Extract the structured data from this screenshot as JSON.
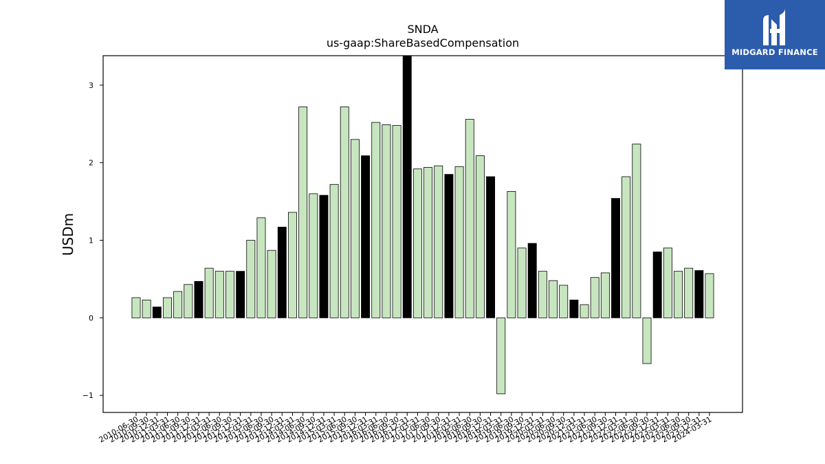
{
  "logo": {
    "text": "MIDGARD FINANCE",
    "icon": "midgard-logo-icon",
    "background": "#2c5cac"
  },
  "chart_data": {
    "type": "bar",
    "title": "SNDA",
    "subtitle": "us-gaap:ShareBasedCompensation",
    "xlabel": "",
    "ylabel": "USDm",
    "ylim": [
      -1.22,
      3.38
    ],
    "yticks": [
      -1,
      0,
      1,
      2,
      3
    ],
    "grid": false,
    "colors": {
      "normal": "#c7e6c0",
      "highlight": "#000000",
      "edge": "#000000"
    },
    "categories": [
      "2010-06-30",
      "2010-09-30",
      "2010-12-31",
      "2011-03-31",
      "2011-06-30",
      "2011-09-30",
      "2011-12-31",
      "2012-03-31",
      "2012-06-30",
      "2012-09-30",
      "2012-12-31",
      "2013-03-31",
      "2013-06-30",
      "2013-09-30",
      "2013-12-31",
      "2014-03-31",
      "2014-06-30",
      "2014-09-30",
      "2014-12-31",
      "2015-03-31",
      "2015-06-30",
      "2015-09-30",
      "2015-12-31",
      "2016-03-31",
      "2016-06-30",
      "2016-09-30",
      "2016-12-31",
      "2017-03-31",
      "2017-06-30",
      "2017-09-30",
      "2017-12-31",
      "2018-03-31",
      "2018-06-30",
      "2018-09-30",
      "2018-12-31",
      "2019-03-31",
      "2019-06-30",
      "2019-09-30",
      "2019-12-31",
      "2020-03-31",
      "2020-06-30",
      "2020-09-30",
      "2020-12-31",
      "2021-03-31",
      "2021-06-30",
      "2021-09-30",
      "2021-12-31",
      "2022-03-31",
      "2022-06-30",
      "2022-09-30",
      "2022-12-31",
      "2023-03-31",
      "2023-06-30",
      "2023-09-30",
      "2023-12-31",
      "2024-03-31"
    ],
    "values": [
      0.26,
      0.23,
      0.14,
      0.26,
      0.34,
      0.43,
      0.47,
      0.64,
      0.6,
      0.6,
      0.6,
      1.0,
      1.29,
      0.87,
      1.17,
      1.36,
      2.72,
      1.6,
      1.58,
      1.72,
      2.72,
      2.3,
      2.09,
      2.52,
      2.49,
      2.48,
      3.42,
      1.92,
      1.94,
      1.96,
      1.85,
      1.95,
      2.56,
      2.09,
      1.82,
      -0.98,
      1.63,
      0.9,
      0.96,
      0.6,
      0.48,
      0.42,
      0.23,
      0.17,
      0.52,
      0.58,
      1.54,
      1.82,
      2.24,
      -0.59,
      0.85,
      0.9,
      0.6,
      0.64,
      0.61,
      0.57
    ],
    "highlight": [
      false,
      false,
      true,
      false,
      false,
      false,
      true,
      false,
      false,
      false,
      true,
      false,
      false,
      false,
      true,
      false,
      false,
      false,
      true,
      false,
      false,
      false,
      true,
      false,
      false,
      false,
      true,
      false,
      false,
      false,
      true,
      false,
      false,
      false,
      true,
      false,
      false,
      false,
      true,
      false,
      false,
      false,
      true,
      false,
      false,
      false,
      true,
      false,
      false,
      false,
      true,
      false,
      false,
      false,
      true,
      false
    ]
  }
}
